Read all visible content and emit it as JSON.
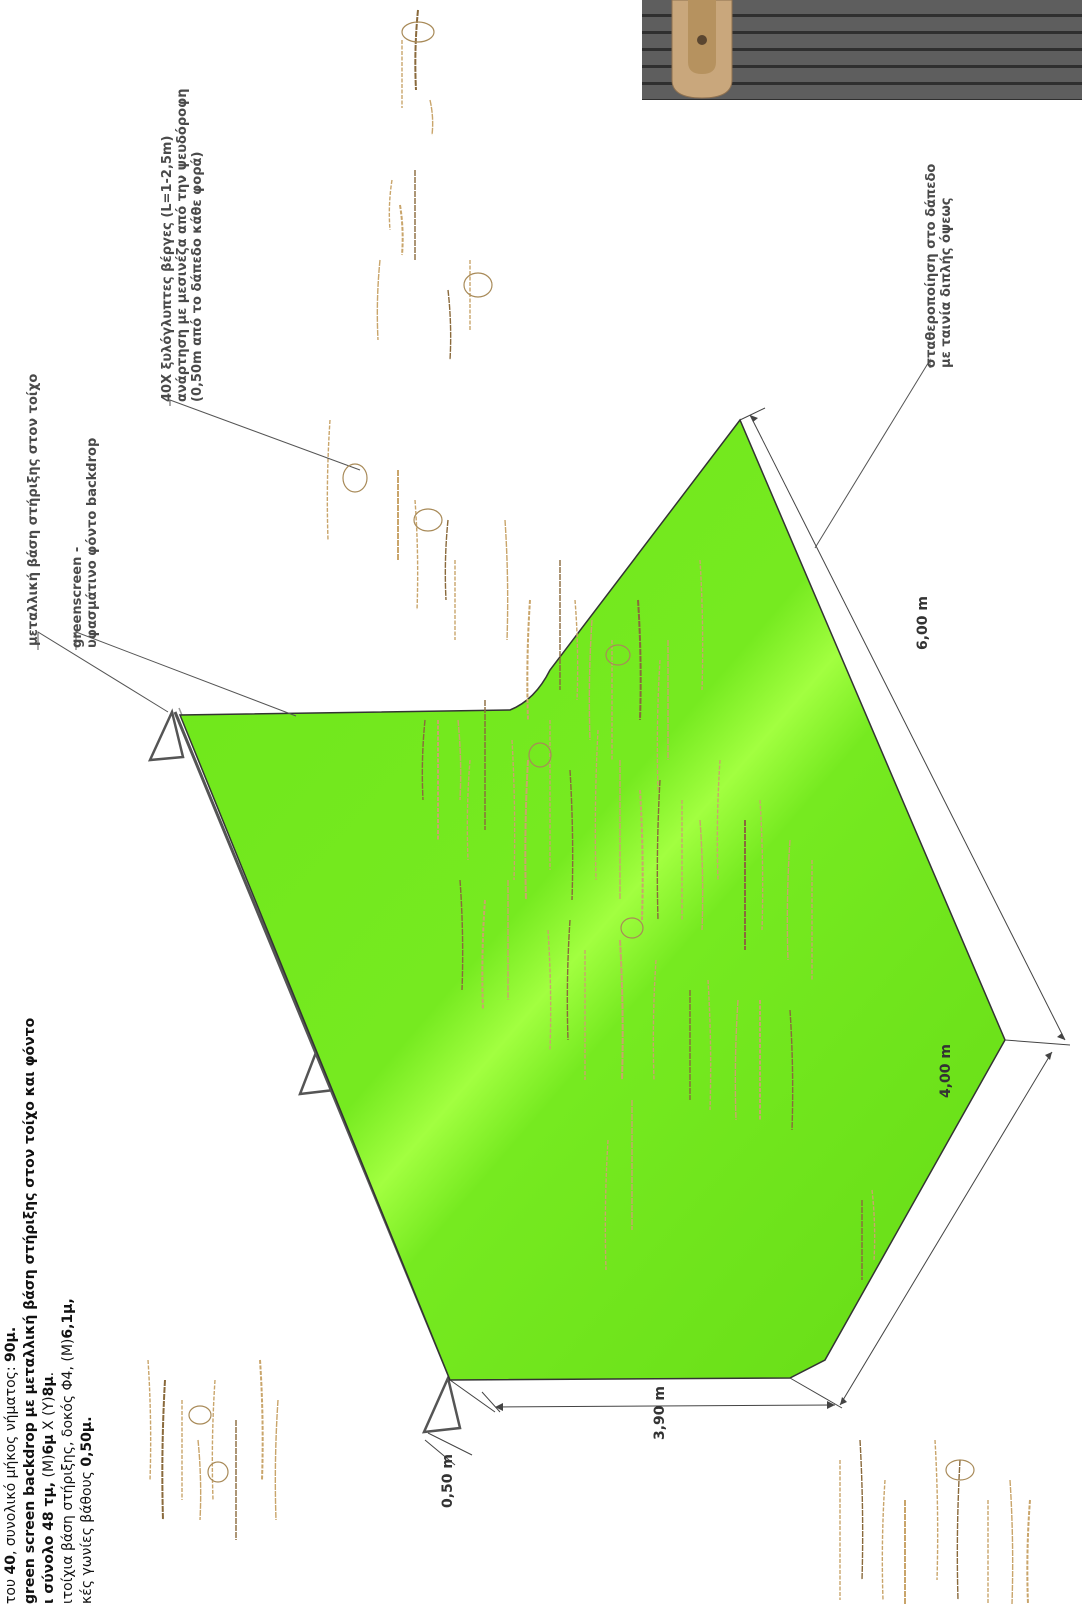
{
  "callouts": {
    "metal_base": "μεταλλική βάση στήριξης στον τοίχο",
    "greenscreen_line1": "greenscreen -",
    "greenscreen_line2": "υφασμάτινο φόντο backdrop",
    "rods_line1": "40Χ ξυλόγλυπτες βέργες (L=1-2,5m)",
    "rods_line2": "ανάρτηση με μεσινέζα από την ψευδόροφη",
    "rods_line3": "(0,50m από το δάπεδο κάθε φορά)",
    "floor_line1": "σταθεροποίηση στο δάπεδο",
    "floor_line2": "με ταινία διπλής όψεως"
  },
  "dimensions": {
    "floor_length": "6,00 m",
    "floor_depth": "4,00 m",
    "wall_height": "3,90 m",
    "bracket_depth": "0,50 m"
  },
  "spec": {
    "line1_a": "του ",
    "line1_b": "40",
    "line1_c": ", συνολικό μήκος νήματος: ",
    "line1_d": "90μ.",
    "line2": "green screen backdrop με μεταλλική βάση στήριξης στον τοίχο και φόντο",
    "line3_a": "ι σύνολο 48 τμ,",
    "line3_b": " (Μ)",
    "line3_c": "6μ",
    "line3_d": " Χ (Υ)",
    "line3_e": "8μ",
    "line3_f": ".",
    "line4_a": "ιτοίχια βάση στήριξης, δοκός Φ4, (Μ)",
    "line4_b": "6,1μ,",
    "line5_a": "κές γωνίες βάθους ",
    "line5_b": "0,50μ."
  },
  "colors": {
    "screen_green": "#6ee61a",
    "screen_highlight": "#9cff3a",
    "rod_wood": "#c9a56b",
    "line": "#333333"
  }
}
